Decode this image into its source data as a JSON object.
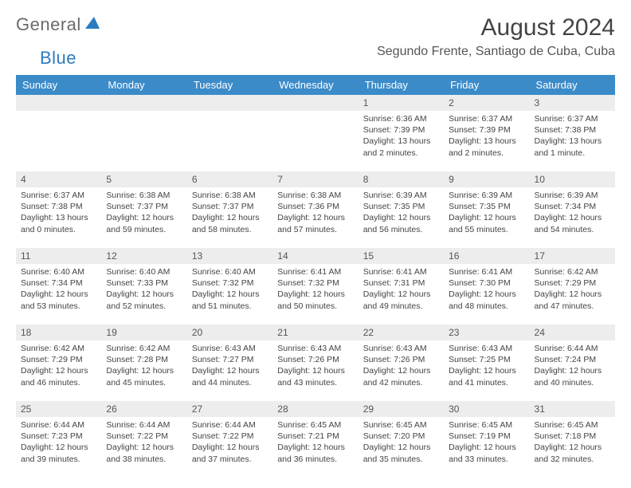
{
  "logo": {
    "general": "General",
    "blue": "Blue"
  },
  "title": "August 2024",
  "location": "Segundo Frente, Santiago de Cuba, Cuba",
  "colors": {
    "header_bg": "#3b8bc9",
    "header_fg": "#ffffff",
    "daynum_bg": "#ededed",
    "text": "#444444",
    "logo_gray": "#6a6a6a",
    "logo_blue": "#2b7bbf"
  },
  "weekdays": [
    "Sunday",
    "Monday",
    "Tuesday",
    "Wednesday",
    "Thursday",
    "Friday",
    "Saturday"
  ],
  "days": [
    {
      "n": "1",
      "sunrise": "6:36 AM",
      "sunset": "7:39 PM",
      "daylight": "13 hours and 2 minutes."
    },
    {
      "n": "2",
      "sunrise": "6:37 AM",
      "sunset": "7:39 PM",
      "daylight": "13 hours and 2 minutes."
    },
    {
      "n": "3",
      "sunrise": "6:37 AM",
      "sunset": "7:38 PM",
      "daylight": "13 hours and 1 minute."
    },
    {
      "n": "4",
      "sunrise": "6:37 AM",
      "sunset": "7:38 PM",
      "daylight": "13 hours and 0 minutes."
    },
    {
      "n": "5",
      "sunrise": "6:38 AM",
      "sunset": "7:37 PM",
      "daylight": "12 hours and 59 minutes."
    },
    {
      "n": "6",
      "sunrise": "6:38 AM",
      "sunset": "7:37 PM",
      "daylight": "12 hours and 58 minutes."
    },
    {
      "n": "7",
      "sunrise": "6:38 AM",
      "sunset": "7:36 PM",
      "daylight": "12 hours and 57 minutes."
    },
    {
      "n": "8",
      "sunrise": "6:39 AM",
      "sunset": "7:35 PM",
      "daylight": "12 hours and 56 minutes."
    },
    {
      "n": "9",
      "sunrise": "6:39 AM",
      "sunset": "7:35 PM",
      "daylight": "12 hours and 55 minutes."
    },
    {
      "n": "10",
      "sunrise": "6:39 AM",
      "sunset": "7:34 PM",
      "daylight": "12 hours and 54 minutes."
    },
    {
      "n": "11",
      "sunrise": "6:40 AM",
      "sunset": "7:34 PM",
      "daylight": "12 hours and 53 minutes."
    },
    {
      "n": "12",
      "sunrise": "6:40 AM",
      "sunset": "7:33 PM",
      "daylight": "12 hours and 52 minutes."
    },
    {
      "n": "13",
      "sunrise": "6:40 AM",
      "sunset": "7:32 PM",
      "daylight": "12 hours and 51 minutes."
    },
    {
      "n": "14",
      "sunrise": "6:41 AM",
      "sunset": "7:32 PM",
      "daylight": "12 hours and 50 minutes."
    },
    {
      "n": "15",
      "sunrise": "6:41 AM",
      "sunset": "7:31 PM",
      "daylight": "12 hours and 49 minutes."
    },
    {
      "n": "16",
      "sunrise": "6:41 AM",
      "sunset": "7:30 PM",
      "daylight": "12 hours and 48 minutes."
    },
    {
      "n": "17",
      "sunrise": "6:42 AM",
      "sunset": "7:29 PM",
      "daylight": "12 hours and 47 minutes."
    },
    {
      "n": "18",
      "sunrise": "6:42 AM",
      "sunset": "7:29 PM",
      "daylight": "12 hours and 46 minutes."
    },
    {
      "n": "19",
      "sunrise": "6:42 AM",
      "sunset": "7:28 PM",
      "daylight": "12 hours and 45 minutes."
    },
    {
      "n": "20",
      "sunrise": "6:43 AM",
      "sunset": "7:27 PM",
      "daylight": "12 hours and 44 minutes."
    },
    {
      "n": "21",
      "sunrise": "6:43 AM",
      "sunset": "7:26 PM",
      "daylight": "12 hours and 43 minutes."
    },
    {
      "n": "22",
      "sunrise": "6:43 AM",
      "sunset": "7:26 PM",
      "daylight": "12 hours and 42 minutes."
    },
    {
      "n": "23",
      "sunrise": "6:43 AM",
      "sunset": "7:25 PM",
      "daylight": "12 hours and 41 minutes."
    },
    {
      "n": "24",
      "sunrise": "6:44 AM",
      "sunset": "7:24 PM",
      "daylight": "12 hours and 40 minutes."
    },
    {
      "n": "25",
      "sunrise": "6:44 AM",
      "sunset": "7:23 PM",
      "daylight": "12 hours and 39 minutes."
    },
    {
      "n": "26",
      "sunrise": "6:44 AM",
      "sunset": "7:22 PM",
      "daylight": "12 hours and 38 minutes."
    },
    {
      "n": "27",
      "sunrise": "6:44 AM",
      "sunset": "7:22 PM",
      "daylight": "12 hours and 37 minutes."
    },
    {
      "n": "28",
      "sunrise": "6:45 AM",
      "sunset": "7:21 PM",
      "daylight": "12 hours and 36 minutes."
    },
    {
      "n": "29",
      "sunrise": "6:45 AM",
      "sunset": "7:20 PM",
      "daylight": "12 hours and 35 minutes."
    },
    {
      "n": "30",
      "sunrise": "6:45 AM",
      "sunset": "7:19 PM",
      "daylight": "12 hours and 33 minutes."
    },
    {
      "n": "31",
      "sunrise": "6:45 AM",
      "sunset": "7:18 PM",
      "daylight": "12 hours and 32 minutes."
    }
  ],
  "labels": {
    "sunrise": "Sunrise: ",
    "sunset": "Sunset: ",
    "daylight": "Daylight: "
  },
  "layout": {
    "first_weekday_index": 4,
    "rows": 5,
    "cols": 7
  }
}
